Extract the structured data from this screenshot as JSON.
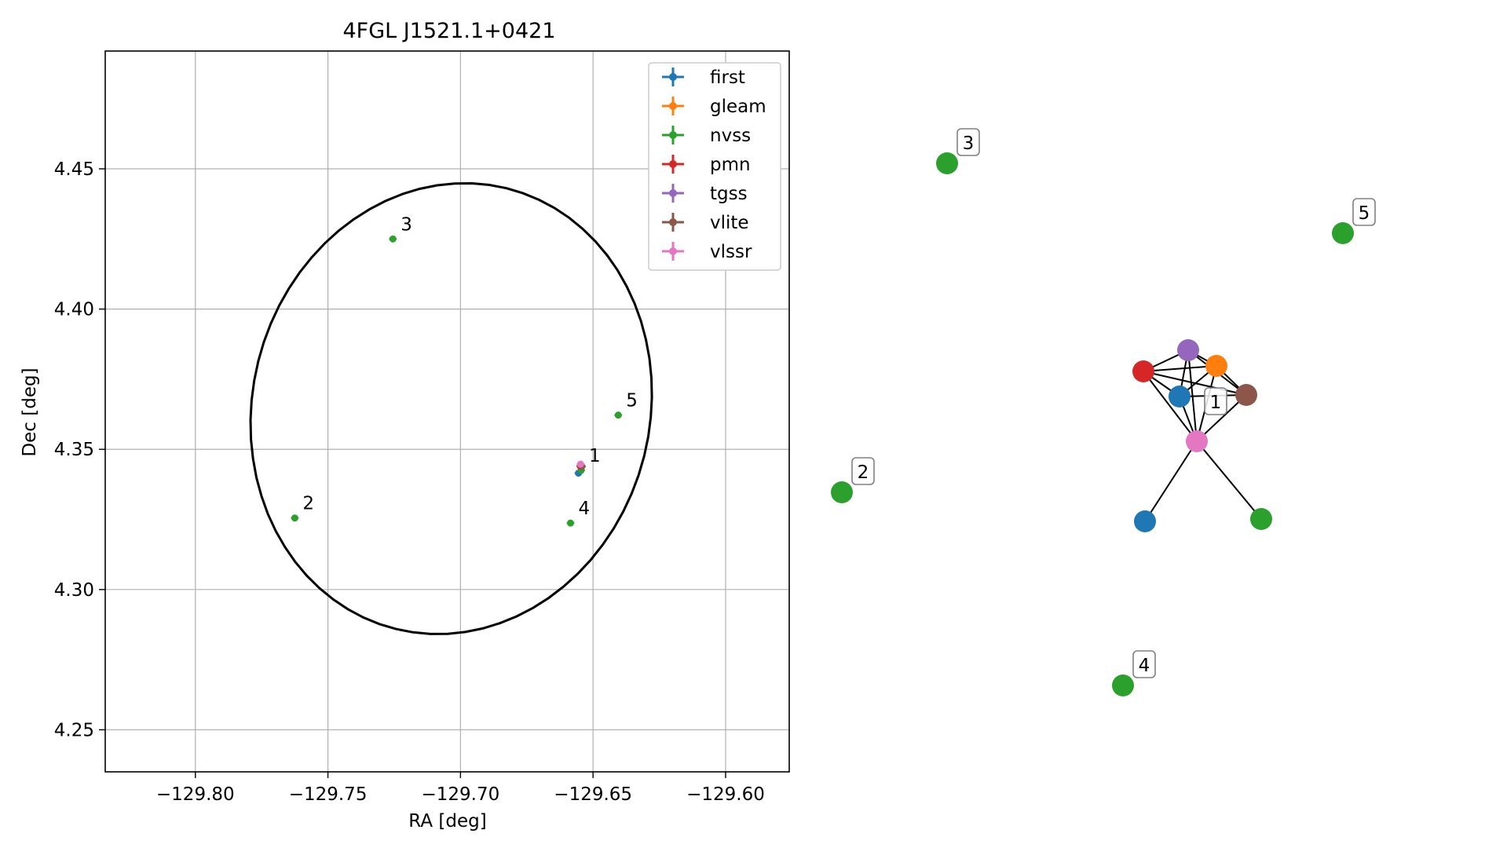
{
  "chart_data": [
    {
      "type": "scatter",
      "title": "4FGL J1521.1+0421",
      "xlabel": "RA [deg]",
      "ylabel": "Dec [deg]",
      "xlim": [
        -129.834,
        -129.576
      ],
      "ylim": [
        4.235,
        4.492
      ],
      "x_ticks": [
        -129.8,
        -129.75,
        -129.7,
        -129.65,
        -129.6
      ],
      "x_tick_labels": [
        "−129.80",
        "−129.75",
        "−129.70",
        "−129.65",
        "−129.60"
      ],
      "y_ticks": [
        4.25,
        4.3,
        4.35,
        4.4,
        4.45
      ],
      "y_tick_labels": [
        "4.25",
        "4.30",
        "4.35",
        "4.40",
        "4.45"
      ],
      "grid": true,
      "legend_position": "top-right",
      "series": [
        {
          "name": "first",
          "color": "#1f77b4",
          "points": [
            {
              "x": -129.6555,
              "y": 4.3415
            }
          ]
        },
        {
          "name": "gleam",
          "color": "#ff7f0e",
          "points": [
            {
              "x": -129.6543,
              "y": 4.3438
            }
          ]
        },
        {
          "name": "nvss",
          "color": "#2ca02c",
          "points": [
            {
              "x": -129.6545,
              "y": 4.3425
            },
            {
              "x": -129.7625,
              "y": 4.3255
            },
            {
              "x": -129.7255,
              "y": 4.425
            },
            {
              "x": -129.6585,
              "y": 4.3237
            },
            {
              "x": -129.6405,
              "y": 4.3622
            }
          ]
        },
        {
          "name": "pmn",
          "color": "#d62728",
          "points": [
            {
              "x": -129.6548,
              "y": 4.344
            }
          ]
        },
        {
          "name": "tgss",
          "color": "#9467bd",
          "points": [
            {
              "x": -129.6546,
              "y": 4.3444
            }
          ]
        },
        {
          "name": "vlite",
          "color": "#8c564b",
          "points": [
            {
              "x": -129.6542,
              "y": 4.3439
            }
          ]
        },
        {
          "name": "vlssr",
          "color": "#e377c2",
          "points": [
            {
              "x": -129.6547,
              "y": 4.3447
            }
          ]
        }
      ],
      "annotations": [
        {
          "text": "1",
          "x": -129.6545,
          "y": 4.3425
        },
        {
          "text": "2",
          "x": -129.7625,
          "y": 4.3255
        },
        {
          "text": "3",
          "x": -129.7255,
          "y": 4.425
        },
        {
          "text": "4",
          "x": -129.6585,
          "y": 4.3237
        },
        {
          "text": "5",
          "x": -129.6405,
          "y": 4.3622
        }
      ],
      "ellipse": {
        "center": {
          "x": -129.7035,
          "y": 4.3645
        },
        "semi_major_deg": 0.0815,
        "semi_minor_deg": 0.0745,
        "angle_deg": 66,
        "color": "#000000"
      }
    },
    {
      "type": "network",
      "nodes": [
        {
          "id": "first-a",
          "color": "#1f77b4"
        },
        {
          "id": "gleam",
          "color": "#ff7f0e"
        },
        {
          "id": "pmn",
          "color": "#d62728"
        },
        {
          "id": "tgss",
          "color": "#9467bd"
        },
        {
          "id": "vlite",
          "color": "#8c564b"
        },
        {
          "id": "vlssr",
          "color": "#e377c2"
        },
        {
          "id": "first-b",
          "color": "#1f77b4"
        },
        {
          "id": "nvss-a",
          "color": "#2ca02c"
        },
        {
          "id": "nvss-2",
          "color": "#2ca02c",
          "label": "2"
        },
        {
          "id": "nvss-3",
          "color": "#2ca02c",
          "label": "3"
        },
        {
          "id": "nvss-4",
          "color": "#2ca02c",
          "label": "4"
        },
        {
          "id": "nvss-5",
          "color": "#2ca02c",
          "label": "5"
        }
      ],
      "edges": [
        [
          "first-a",
          "gleam"
        ],
        [
          "first-a",
          "pmn"
        ],
        [
          "first-a",
          "tgss"
        ],
        [
          "first-a",
          "vlite"
        ],
        [
          "first-a",
          "vlssr"
        ],
        [
          "gleam",
          "pmn"
        ],
        [
          "gleam",
          "tgss"
        ],
        [
          "gleam",
          "vlite"
        ],
        [
          "gleam",
          "vlssr"
        ],
        [
          "pmn",
          "tgss"
        ],
        [
          "pmn",
          "vlite"
        ],
        [
          "pmn",
          "vlssr"
        ],
        [
          "tgss",
          "vlite"
        ],
        [
          "tgss",
          "vlssr"
        ],
        [
          "vlite",
          "vlssr"
        ],
        [
          "vlssr",
          "first-b"
        ],
        [
          "vlssr",
          "nvss-a"
        ]
      ],
      "cluster_label": "1"
    }
  ]
}
